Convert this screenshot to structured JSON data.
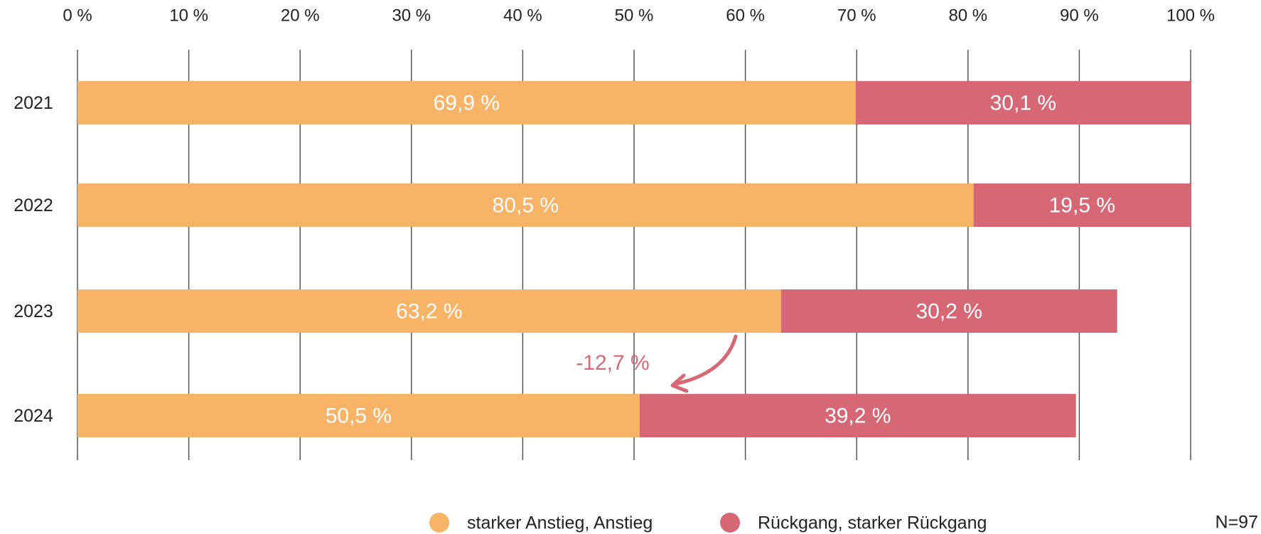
{
  "chart_data": {
    "type": "stacked-bar-horizontal",
    "categories": [
      "2021",
      "2022",
      "2023",
      "2024"
    ],
    "series": [
      {
        "name": "starker Anstieg, Anstieg",
        "color": "#f7b366",
        "values": [
          69.9,
          80.5,
          63.2,
          50.5
        ],
        "value_labels": [
          "69,9 %",
          "80,5 %",
          "63,2 %",
          "50,5 %"
        ]
      },
      {
        "name": "Rückgang, starker Rückgang",
        "color": "#d56874",
        "values": [
          30.1,
          19.5,
          30.2,
          39.2
        ],
        "value_labels": [
          "30,1 %",
          "19,5 %",
          "30,2 %",
          "39,2 %"
        ]
      }
    ],
    "xlim": [
      0,
      100
    ],
    "xticks": [
      {
        "value": 0,
        "label": "0 %"
      },
      {
        "value": 10,
        "label": "10 %"
      },
      {
        "value": 20,
        "label": "20 %"
      },
      {
        "value": 30,
        "label": "30 %"
      },
      {
        "value": 40,
        "label": "40 %"
      },
      {
        "value": 50,
        "label": "50 %"
      },
      {
        "value": 60,
        "label": "60 %"
      },
      {
        "value": 70,
        "label": "70 %"
      },
      {
        "value": 80,
        "label": "80 %"
      },
      {
        "value": 90,
        "label": "90 %"
      },
      {
        "value": 100,
        "label": "100 %"
      }
    ],
    "grid": true,
    "legend": "bottom",
    "annotation": "-12,7 %",
    "note": "N=97"
  }
}
